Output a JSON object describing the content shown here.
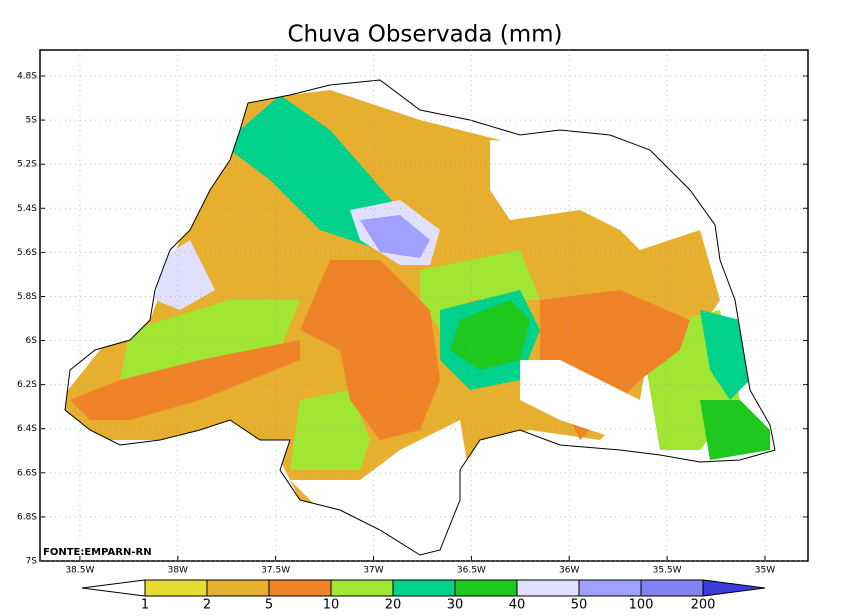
{
  "title": "Chuva Observada (mm)",
  "source": "FONTE:EMPARN-RN",
  "map": {
    "xlim": [
      -38.704,
      -34.78
    ],
    "ylim": [
      -7.0,
      -4.682
    ],
    "xticks": [
      {
        "value": -38.5,
        "label": "38.5W"
      },
      {
        "value": -38,
        "label": "38W"
      },
      {
        "value": -37.5,
        "label": "37.5W"
      },
      {
        "value": -37,
        "label": "37W"
      },
      {
        "value": -36.5,
        "label": "36.5W"
      },
      {
        "value": -36,
        "label": "36W"
      },
      {
        "value": -35.5,
        "label": "35.5W"
      },
      {
        "value": -35,
        "label": "35W"
      }
    ],
    "yticks": [
      {
        "value": -4.8,
        "label": "4.8S"
      },
      {
        "value": -5,
        "label": "5S"
      },
      {
        "value": -5.2,
        "label": "5.2S"
      },
      {
        "value": -5.4,
        "label": "5.4S"
      },
      {
        "value": -5.6,
        "label": "5.6S"
      },
      {
        "value": -5.8,
        "label": "5.8S"
      },
      {
        "value": -6,
        "label": "6S"
      },
      {
        "value": -6.2,
        "label": "6.2S"
      },
      {
        "value": -6.4,
        "label": "6.4S"
      },
      {
        "value": -6.6,
        "label": "6.6S"
      },
      {
        "value": -6.8,
        "label": "6.8S"
      },
      {
        "value": -7,
        "label": "7S"
      }
    ],
    "grid": true
  },
  "legend": {
    "levels": [
      1,
      2,
      5,
      10,
      20,
      30,
      40,
      50,
      100,
      200
    ],
    "colors": [
      "#ffffff",
      "#e6dc32",
      "#e6af2d",
      "#f08228",
      "#a0e632",
      "#00d28c",
      "#1ec81e",
      "#e1e1ff",
      "#a0a0ff",
      "#8282f0",
      "#3c3cdc"
    ]
  }
}
